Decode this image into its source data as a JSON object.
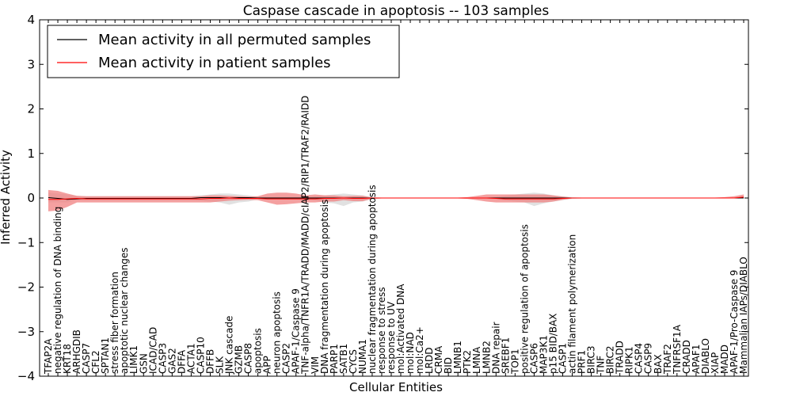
{
  "chart_data": {
    "type": "line",
    "title": "Caspase cascade in apoptosis -- 103 samples",
    "xlabel": "Cellular Entities",
    "ylabel": "Inferred Activity",
    "ylim": [
      -4,
      4
    ],
    "yticks": [
      -4,
      -3,
      -2,
      -1,
      0,
      1,
      2,
      3,
      4
    ],
    "ytick_labels": [
      "−4",
      "−3",
      "−2",
      "−1",
      "0",
      "1",
      "2",
      "3",
      "4"
    ],
    "categories": [
      "TFAP2A",
      "negative regulation of DNA binding",
      "KRT18",
      "ARHGDIB",
      "CASP7",
      "CFL2",
      "SPTAN1",
      "stress fiber formation",
      "apoptotic nuclear changes",
      "LIMK1",
      "GSN",
      "ICAD/CAD",
      "CASP3",
      "GAS2",
      "DFFA",
      "ACTA1",
      "CASP10",
      "DFFB",
      "SLK",
      "JNK cascade",
      "GZMB",
      "CASP8",
      "apoptosis",
      "APP",
      "neuron apoptosis",
      "CASP2",
      "APAF-1/Caspase 9",
      "TNF-alpha/TNFR1A/TRADD/MADD/cIAP2/RIP1/TRAF2/RAIDD",
      "VIM",
      "DNA fragmentation during apoptosis",
      "PARP1",
      "SATB1",
      "CYCS",
      "NUMA1",
      "nuclear fragmentation during apoptosis",
      "response to stress",
      "response to UV",
      "mol:Activated DNA",
      "mol:NAD",
      "mol:Ca2+",
      "LRDD",
      "CRMA",
      "BID",
      "LMNB1",
      "PTK2",
      "LMNA",
      "LMNB2",
      "DNA repair",
      "SREBF1",
      "TOP1",
      "positive regulation of apoptosis",
      "CASP6",
      "MAP3K1",
      "p15 BID/BAX",
      "CASP1",
      "actin filament polymerization",
      "PRF1",
      "BIRC3",
      "TNF",
      "BIRC2",
      "TRADD",
      "RIPK1",
      "CASP4",
      "CASP9",
      "BAX",
      "TRAF2",
      "TNFRSF1A",
      "CRADD",
      "APAF1",
      "DIABLO",
      "XIAP",
      "MADD",
      "APAF-1/Pro-Caspase 9",
      "Mammalian IAPs/DIABLO"
    ],
    "series": [
      {
        "name": "Mean activity in all permuted samples",
        "color": "#000000",
        "band_color": "#c8c8c8",
        "values": [
          0.01,
          -0.01,
          -0.03,
          -0.02,
          -0.01,
          -0.01,
          -0.01,
          -0.01,
          -0.01,
          -0.01,
          -0.01,
          -0.01,
          -0.01,
          -0.01,
          -0.01,
          -0.01,
          0.01,
          0.01,
          0.01,
          0.0,
          0.01,
          0.01,
          0.0,
          0.0,
          0.0,
          0.0,
          0.0,
          0.0,
          0.0,
          0.0,
          0.0,
          0.0,
          0.0,
          0.0,
          0.0,
          0.0,
          0.0,
          0.0,
          0.0,
          0.0,
          0.0,
          0.0,
          0.0,
          0.0,
          0.0,
          0.0,
          0.0,
          0.0,
          0.0,
          0.0,
          0.0,
          0.0,
          0.0,
          0.0,
          0.0,
          0.0,
          0.0,
          0.0,
          0.0,
          0.0,
          0.0,
          0.0,
          0.0,
          0.0,
          0.0,
          0.0,
          0.0,
          0.0,
          0.0,
          0.0,
          0.0,
          0.0,
          0.0,
          0.0
        ],
        "lower": [
          -0.1,
          -0.1,
          -0.1,
          -0.05,
          -0.05,
          -0.05,
          -0.05,
          -0.05,
          -0.05,
          -0.05,
          -0.05,
          -0.05,
          -0.05,
          -0.05,
          -0.05,
          -0.05,
          -0.06,
          -0.08,
          -0.1,
          -0.15,
          -0.1,
          -0.08,
          -0.03,
          -0.02,
          -0.02,
          -0.02,
          -0.02,
          -0.02,
          -0.05,
          -0.1,
          -0.12,
          -0.18,
          -0.1,
          -0.08,
          -0.02,
          -0.01,
          -0.01,
          -0.01,
          -0.01,
          -0.01,
          -0.01,
          -0.01,
          -0.01,
          -0.01,
          -0.01,
          -0.01,
          -0.01,
          -0.02,
          -0.05,
          -0.08,
          -0.1,
          -0.18,
          -0.12,
          -0.08,
          -0.05,
          -0.02,
          -0.01,
          -0.01,
          -0.01,
          -0.01,
          -0.01,
          -0.01,
          -0.01,
          -0.01,
          -0.01,
          -0.01,
          -0.01,
          -0.01,
          -0.01,
          -0.01,
          -0.01,
          -0.01,
          -0.01,
          -0.01
        ],
        "upper": [
          0.12,
          0.1,
          0.08,
          0.05,
          0.04,
          0.04,
          0.04,
          0.04,
          0.04,
          0.04,
          0.04,
          0.04,
          0.04,
          0.04,
          0.04,
          0.04,
          0.06,
          0.08,
          0.1,
          0.1,
          0.08,
          0.06,
          0.03,
          0.02,
          0.02,
          0.02,
          0.02,
          0.02,
          0.04,
          0.06,
          0.08,
          0.1,
          0.08,
          0.06,
          0.02,
          0.01,
          0.01,
          0.01,
          0.01,
          0.01,
          0.01,
          0.01,
          0.01,
          0.01,
          0.01,
          0.01,
          0.01,
          0.02,
          0.05,
          0.08,
          0.1,
          0.12,
          0.1,
          0.06,
          0.04,
          0.02,
          0.01,
          0.01,
          0.01,
          0.01,
          0.01,
          0.01,
          0.01,
          0.01,
          0.01,
          0.01,
          0.01,
          0.01,
          0.01,
          0.01,
          0.01,
          0.01,
          0.01,
          0.01
        ]
      },
      {
        "name": "Mean activity in patient samples",
        "color": "#ff0000",
        "band_color": "#f08080",
        "values": [
          -0.03,
          -0.03,
          -0.02,
          -0.01,
          -0.02,
          -0.02,
          -0.02,
          -0.02,
          -0.02,
          -0.02,
          -0.02,
          -0.02,
          -0.02,
          -0.02,
          -0.02,
          -0.02,
          -0.02,
          -0.01,
          -0.01,
          0.0,
          -0.01,
          -0.01,
          -0.01,
          -0.02,
          -0.02,
          -0.02,
          -0.02,
          -0.02,
          -0.02,
          -0.01,
          -0.01,
          0.0,
          -0.01,
          -0.01,
          0.0,
          0.0,
          0.0,
          0.0,
          0.0,
          0.0,
          0.0,
          0.0,
          0.0,
          0.0,
          0.0,
          0.0,
          0.0,
          -0.01,
          -0.02,
          -0.02,
          -0.02,
          -0.02,
          -0.02,
          -0.02,
          -0.01,
          0.0,
          0.0,
          0.0,
          0.0,
          0.0,
          0.0,
          0.0,
          0.0,
          0.0,
          0.0,
          0.0,
          0.0,
          0.0,
          0.0,
          0.0,
          0.0,
          0.0,
          0.0,
          0.02
        ],
        "lower": [
          -0.3,
          -0.28,
          -0.2,
          -0.1,
          -0.1,
          -0.1,
          -0.1,
          -0.1,
          -0.1,
          -0.1,
          -0.1,
          -0.1,
          -0.1,
          -0.1,
          -0.1,
          -0.1,
          -0.1,
          -0.1,
          -0.08,
          -0.06,
          -0.05,
          -0.04,
          -0.05,
          -0.1,
          -0.15,
          -0.14,
          -0.12,
          -0.1,
          -0.1,
          -0.08,
          -0.08,
          -0.05,
          -0.07,
          -0.07,
          -0.02,
          -0.01,
          -0.01,
          -0.01,
          -0.01,
          -0.01,
          -0.01,
          -0.01,
          -0.01,
          -0.01,
          -0.02,
          -0.05,
          -0.08,
          -0.1,
          -0.1,
          -0.1,
          -0.1,
          -0.1,
          -0.1,
          -0.08,
          -0.04,
          -0.01,
          -0.01,
          -0.01,
          -0.01,
          -0.01,
          -0.01,
          -0.01,
          -0.01,
          -0.01,
          -0.01,
          -0.01,
          -0.01,
          -0.01,
          -0.01,
          -0.01,
          -0.01,
          -0.01,
          -0.01,
          -0.01
        ],
        "upper": [
          0.18,
          0.16,
          0.1,
          0.05,
          0.04,
          0.04,
          0.04,
          0.04,
          0.04,
          0.04,
          0.04,
          0.04,
          0.04,
          0.04,
          0.04,
          0.04,
          0.04,
          0.06,
          0.06,
          0.05,
          0.04,
          0.03,
          0.04,
          0.1,
          0.12,
          0.12,
          0.1,
          0.06,
          0.08,
          0.06,
          0.06,
          0.04,
          0.05,
          0.05,
          0.01,
          0.01,
          0.01,
          0.01,
          0.01,
          0.01,
          0.01,
          0.01,
          0.01,
          0.01,
          0.02,
          0.05,
          0.08,
          0.08,
          0.08,
          0.08,
          0.08,
          0.08,
          0.08,
          0.06,
          0.03,
          0.01,
          0.01,
          0.01,
          0.01,
          0.01,
          0.01,
          0.01,
          0.01,
          0.01,
          0.01,
          0.01,
          0.01,
          0.01,
          0.01,
          0.01,
          0.01,
          0.02,
          0.04,
          0.08
        ]
      }
    ],
    "legend_position": "upper-left",
    "grid": false
  }
}
